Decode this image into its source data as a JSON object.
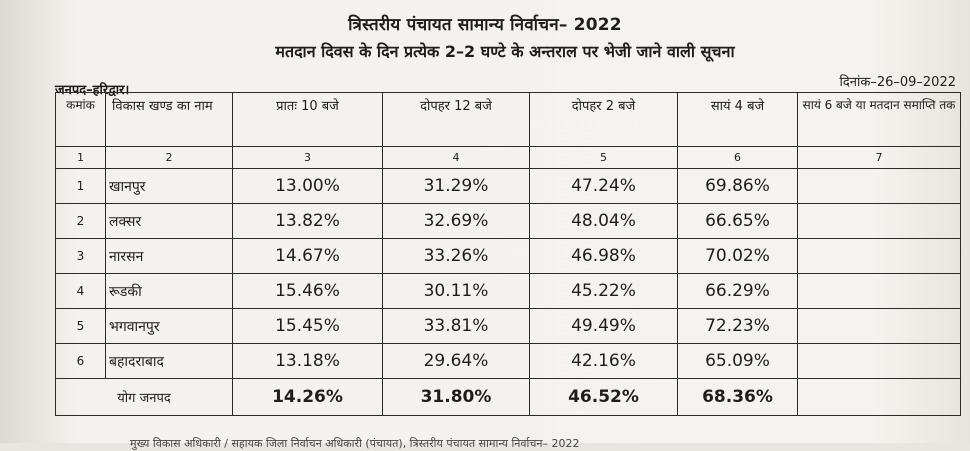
{
  "title": "त्रिस्तरीय पंचायत सामान्य निर्वाचन– 2022",
  "subtitle": "मतदान दिवस के दिन प्रत्येक 2–2 घण्टे के अन्तराल पर भेजी जाने वाली सूचना",
  "district": "जनपद–हरिद्वार।",
  "date": "दिनांक–26–09–2022",
  "table": {
    "headers": [
      "कमांक",
      "विकास खण्ड का नाम",
      "प्रातः 10 बजे",
      "दोपहर 12 बजे",
      "दोपहर 2 बजे",
      "सायं 4 बजे",
      "सायं 6 बजे या मतदान समाप्ति तक"
    ],
    "col_numbers": [
      "1",
      "2",
      "3",
      "4",
      "5",
      "6",
      "7"
    ],
    "rows": [
      {
        "sn": "1",
        "block": "खानपुर",
        "t10": "13.00%",
        "t12": "31.29%",
        "t2": "47.24%",
        "t4": "69.86%",
        "t6": ""
      },
      {
        "sn": "2",
        "block": "लक्सर",
        "t10": "13.82%",
        "t12": "32.69%",
        "t2": "48.04%",
        "t4": "66.65%",
        "t6": ""
      },
      {
        "sn": "3",
        "block": "नारसन",
        "t10": "14.67%",
        "t12": "33.26%",
        "t2": "46.98%",
        "t4": "70.02%",
        "t6": ""
      },
      {
        "sn": "4",
        "block": "रूडकी",
        "t10": "15.46%",
        "t12": "30.11%",
        "t2": "45.22%",
        "t4": "66.29%",
        "t6": ""
      },
      {
        "sn": "5",
        "block": "भगवानपुर",
        "t10": "15.45%",
        "t12": "33.81%",
        "t2": "49.49%",
        "t4": "72.23%",
        "t6": ""
      },
      {
        "sn": "6",
        "block": "बहादराबाद",
        "t10": "13.18%",
        "t12": "29.64%",
        "t2": "42.16%",
        "t4": "65.09%",
        "t6": ""
      }
    ],
    "total": {
      "label": "योग जनपद",
      "t10": "14.26%",
      "t12": "31.80%",
      "t2": "46.52%",
      "t4": "68.36%",
      "t6": ""
    }
  },
  "footer_partial": "मुख्य विकास अधिकारी / सहायक जिला निर्वाचन अधिकारी (पंचायत), त्रिस्तरीय पंचायत सामान्य निर्वाचन– 2022"
}
